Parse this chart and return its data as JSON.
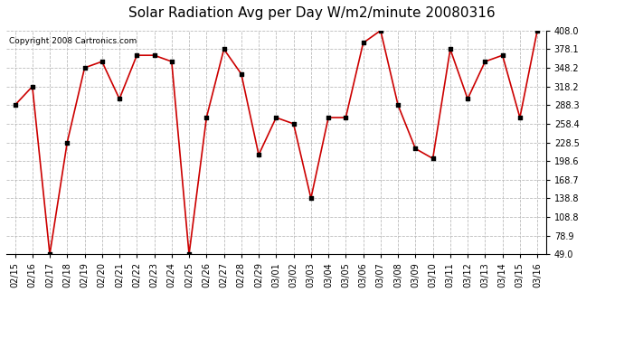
{
  "title": "Solar Radiation Avg per Day W/m2/minute 20080316",
  "copyright": "Copyright 2008 Cartronics.com",
  "dates": [
    "02/15",
    "02/16",
    "02/17",
    "02/18",
    "02/19",
    "02/20",
    "02/21",
    "02/22",
    "02/23",
    "02/24",
    "02/25",
    "02/26",
    "02/27",
    "02/28",
    "02/29",
    "03/01",
    "03/02",
    "03/03",
    "03/04",
    "03/05",
    "03/06",
    "03/07",
    "03/08",
    "03/09",
    "03/10",
    "03/11",
    "03/12",
    "03/13",
    "03/14",
    "03/15",
    "03/16"
  ],
  "values": [
    288.3,
    318.2,
    49.0,
    228.5,
    348.2,
    358.2,
    298.3,
    368.2,
    368.2,
    358.2,
    49.0,
    268.3,
    378.1,
    338.2,
    208.6,
    268.3,
    258.4,
    138.8,
    268.3,
    268.3,
    388.1,
    408.0,
    288.3,
    218.5,
    202.6,
    378.1,
    298.3,
    358.2,
    368.2,
    268.3,
    408.0
  ],
  "line_color": "#cc0000",
  "marker_color": "#000000",
  "bg_color": "#ffffff",
  "plot_bg_color": "#ffffff",
  "grid_color": "#bbbbbb",
  "ymin": 49.0,
  "ymax": 408.0,
  "yticks": [
    49.0,
    78.9,
    108.8,
    138.8,
    168.7,
    198.6,
    228.5,
    258.4,
    288.3,
    318.2,
    348.2,
    378.1,
    408.0
  ],
  "title_fontsize": 11,
  "copyright_fontsize": 6.5,
  "tick_fontsize": 7
}
